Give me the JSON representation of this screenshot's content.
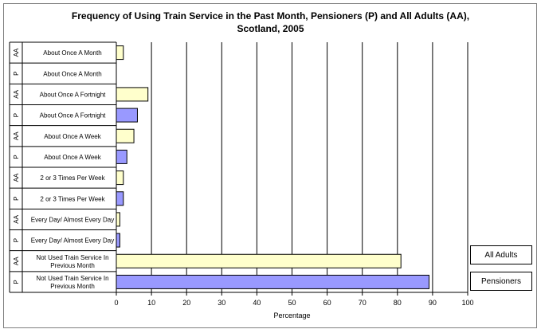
{
  "chart_data": {
    "type": "bar",
    "orientation": "horizontal",
    "title_line1": "Frequency of Using Train Service in the Past Month, Pensioners (P) and All Adults (AA),",
    "title_line2": "Scotland, 2005",
    "xlabel": "Percentage",
    "xlim": [
      0,
      100
    ],
    "x_ticks": [
      "0",
      "10",
      "20",
      "30",
      "40",
      "50",
      "60",
      "70",
      "80",
      "90",
      "100"
    ],
    "grid": "vertical",
    "legend_placement": "right",
    "rows": [
      {
        "group": "AA",
        "category": "About Once A Month",
        "value": 2
      },
      {
        "group": "P",
        "category": "About Once A Month",
        "value": 0
      },
      {
        "group": "AA",
        "category": "About Once A Fortnight",
        "value": 9
      },
      {
        "group": "P",
        "category": "About Once A Fortnight",
        "value": 6
      },
      {
        "group": "AA",
        "category": "About Once A Week",
        "value": 5
      },
      {
        "group": "P",
        "category": "About Once A Week",
        "value": 3
      },
      {
        "group": "AA",
        "category": "2 or 3 Times Per Week",
        "value": 2
      },
      {
        "group": "P",
        "category": "2 or 3 Times Per Week",
        "value": 2
      },
      {
        "group": "AA",
        "category": "Every Day/ Almost Every Day",
        "value": 1
      },
      {
        "group": "P",
        "category": "Every Day/ Almost Every Day",
        "value": 1
      },
      {
        "group": "AA",
        "category": "Not Used Train Service In Previous Month",
        "value": 81
      },
      {
        "group": "P",
        "category": "Not Used Train Service In Previous Month",
        "value": 89
      }
    ],
    "series": [
      {
        "name": "All Adults",
        "group": "AA",
        "color": "#ffffcc"
      },
      {
        "name": "Pensioners",
        "group": "P",
        "color": "#9999ff"
      }
    ]
  }
}
